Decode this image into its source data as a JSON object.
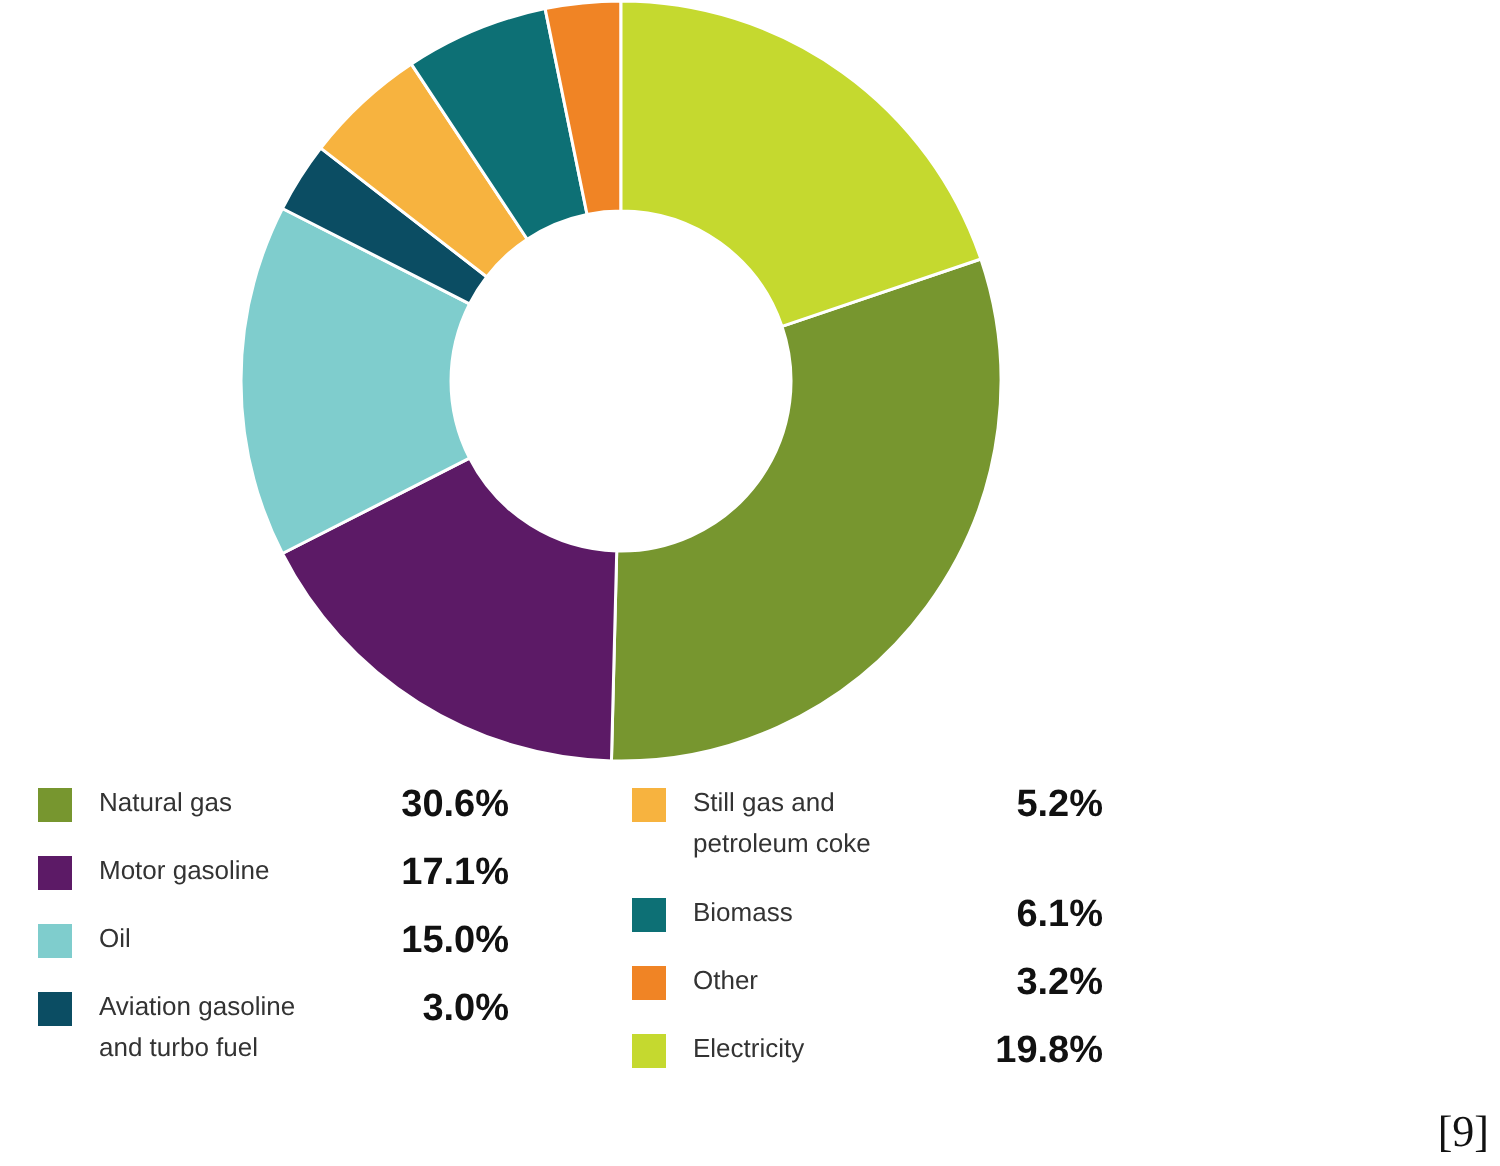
{
  "chart_data": {
    "type": "donut",
    "categories": [
      "Natural gas",
      "Motor gasoline",
      "Oil",
      "Aviation gasoline and turbo fuel",
      "Still gas and petroleum coke",
      "Biomass",
      "Other",
      "Electricity"
    ],
    "values": [
      30.6,
      17.1,
      15.0,
      3.0,
      5.2,
      6.1,
      3.2,
      19.8
    ],
    "colors": [
      "#77962f",
      "#5c1a66",
      "#7fcdcd",
      "#0b4d63",
      "#f7b33f",
      "#0d7075",
      "#f08425",
      "#c5d92f"
    ],
    "value_labels": [
      "30.6%",
      "17.1%",
      "15.0%",
      "3.0%",
      "5.2%",
      "6.1%",
      "3.2%",
      "19.8%"
    ],
    "legend": "bottom",
    "annotations": [
      "[9]"
    ]
  }
}
